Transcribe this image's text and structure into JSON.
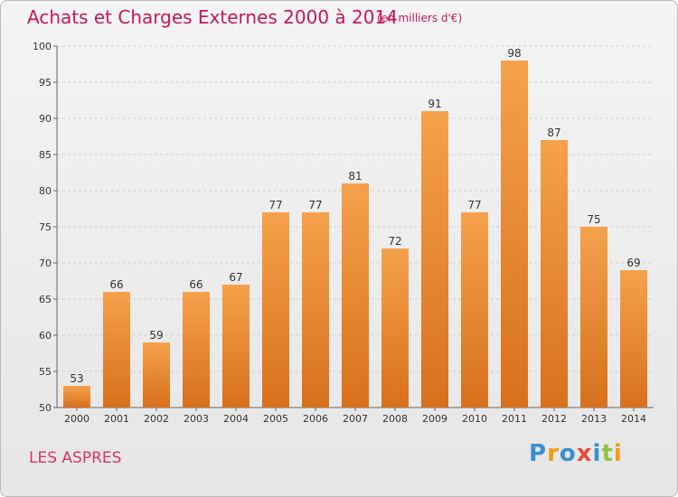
{
  "header": {
    "title": "Achats et Charges Externes 2000 à 2014",
    "unit": "(en milliers d'€)"
  },
  "place": "LES ASPRES",
  "logo": {
    "letters": [
      "P",
      "r",
      "o",
      "x",
      "i",
      "t",
      "i"
    ],
    "colors": [
      "#3a8fd1",
      "#f39c12",
      "#3a8fd1",
      "#e74c3c",
      "#3a8fd1",
      "#8cc63f",
      "#f39c12"
    ]
  },
  "colors": {
    "bar_top": "#f5a14c",
    "bar_bottom": "#d8701c",
    "text": "#333333",
    "title": "#c2185b"
  },
  "chart_data": {
    "type": "bar",
    "title": "Achats et Charges Externes 2000 à 2014",
    "subtitle": "(en milliers d'€)",
    "categories": [
      "2000",
      "2001",
      "2002",
      "2003",
      "2004",
      "2005",
      "2006",
      "2007",
      "2008",
      "2009",
      "2010",
      "2011",
      "2012",
      "2013",
      "2014"
    ],
    "values": [
      53,
      66,
      59,
      66,
      67,
      77,
      77,
      81,
      72,
      91,
      77,
      98,
      87,
      75,
      69
    ],
    "ylim": [
      50,
      100
    ],
    "yticks": [
      50,
      55,
      60,
      65,
      70,
      75,
      80,
      85,
      90,
      95,
      100
    ],
    "grid": true,
    "xlabel": "",
    "ylabel": ""
  }
}
